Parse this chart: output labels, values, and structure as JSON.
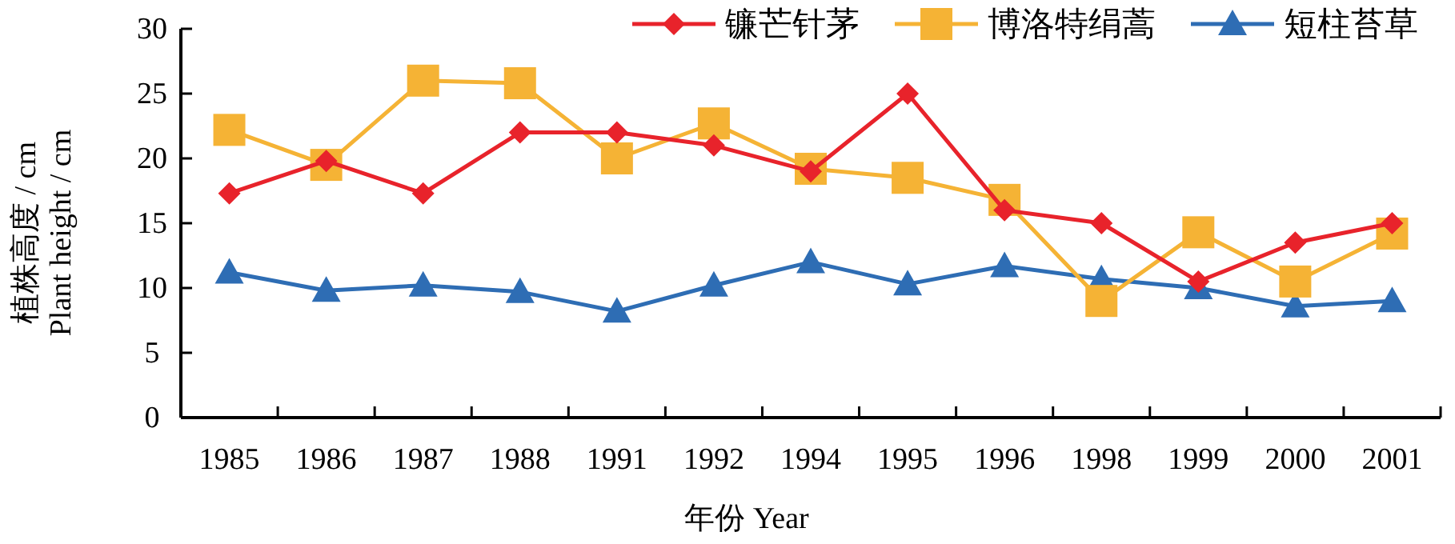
{
  "chart_data": {
    "type": "line",
    "xlabel": "年份 Year",
    "ylabel": "植株高度 / cm\nPlant height / cm",
    "categories": [
      "1985",
      "1986",
      "1987",
      "1988",
      "1991",
      "1992",
      "1994",
      "1995",
      "1996",
      "1998",
      "1999",
      "2000",
      "2001"
    ],
    "ylim": [
      0,
      30
    ],
    "yticks": [
      0,
      5,
      10,
      15,
      20,
      25,
      30
    ],
    "grid": false,
    "legend": "top right",
    "line_style": "solid",
    "series": [
      {
        "name": "镰芒针茅",
        "color": "#e8232b",
        "marker": "diamond",
        "values": [
          17.3,
          19.8,
          17.3,
          22,
          22,
          21,
          19,
          25,
          16,
          15,
          10.5,
          13.5,
          15
        ]
      },
      {
        "name": "博洛特绢蒿",
        "color": "#f5b335",
        "marker": "square",
        "values": [
          22.2,
          19.5,
          26,
          25.8,
          20,
          22.7,
          19.2,
          18.5,
          16.8,
          9,
          14.3,
          10.5,
          14.2
        ]
      },
      {
        "name": "短柱苔草",
        "color": "#2e6db4",
        "marker": "triangle",
        "values": [
          11.2,
          9.8,
          10.2,
          9.7,
          8.2,
          10.2,
          12,
          10.3,
          11.7,
          10.7,
          10,
          8.6,
          9
        ]
      }
    ]
  }
}
